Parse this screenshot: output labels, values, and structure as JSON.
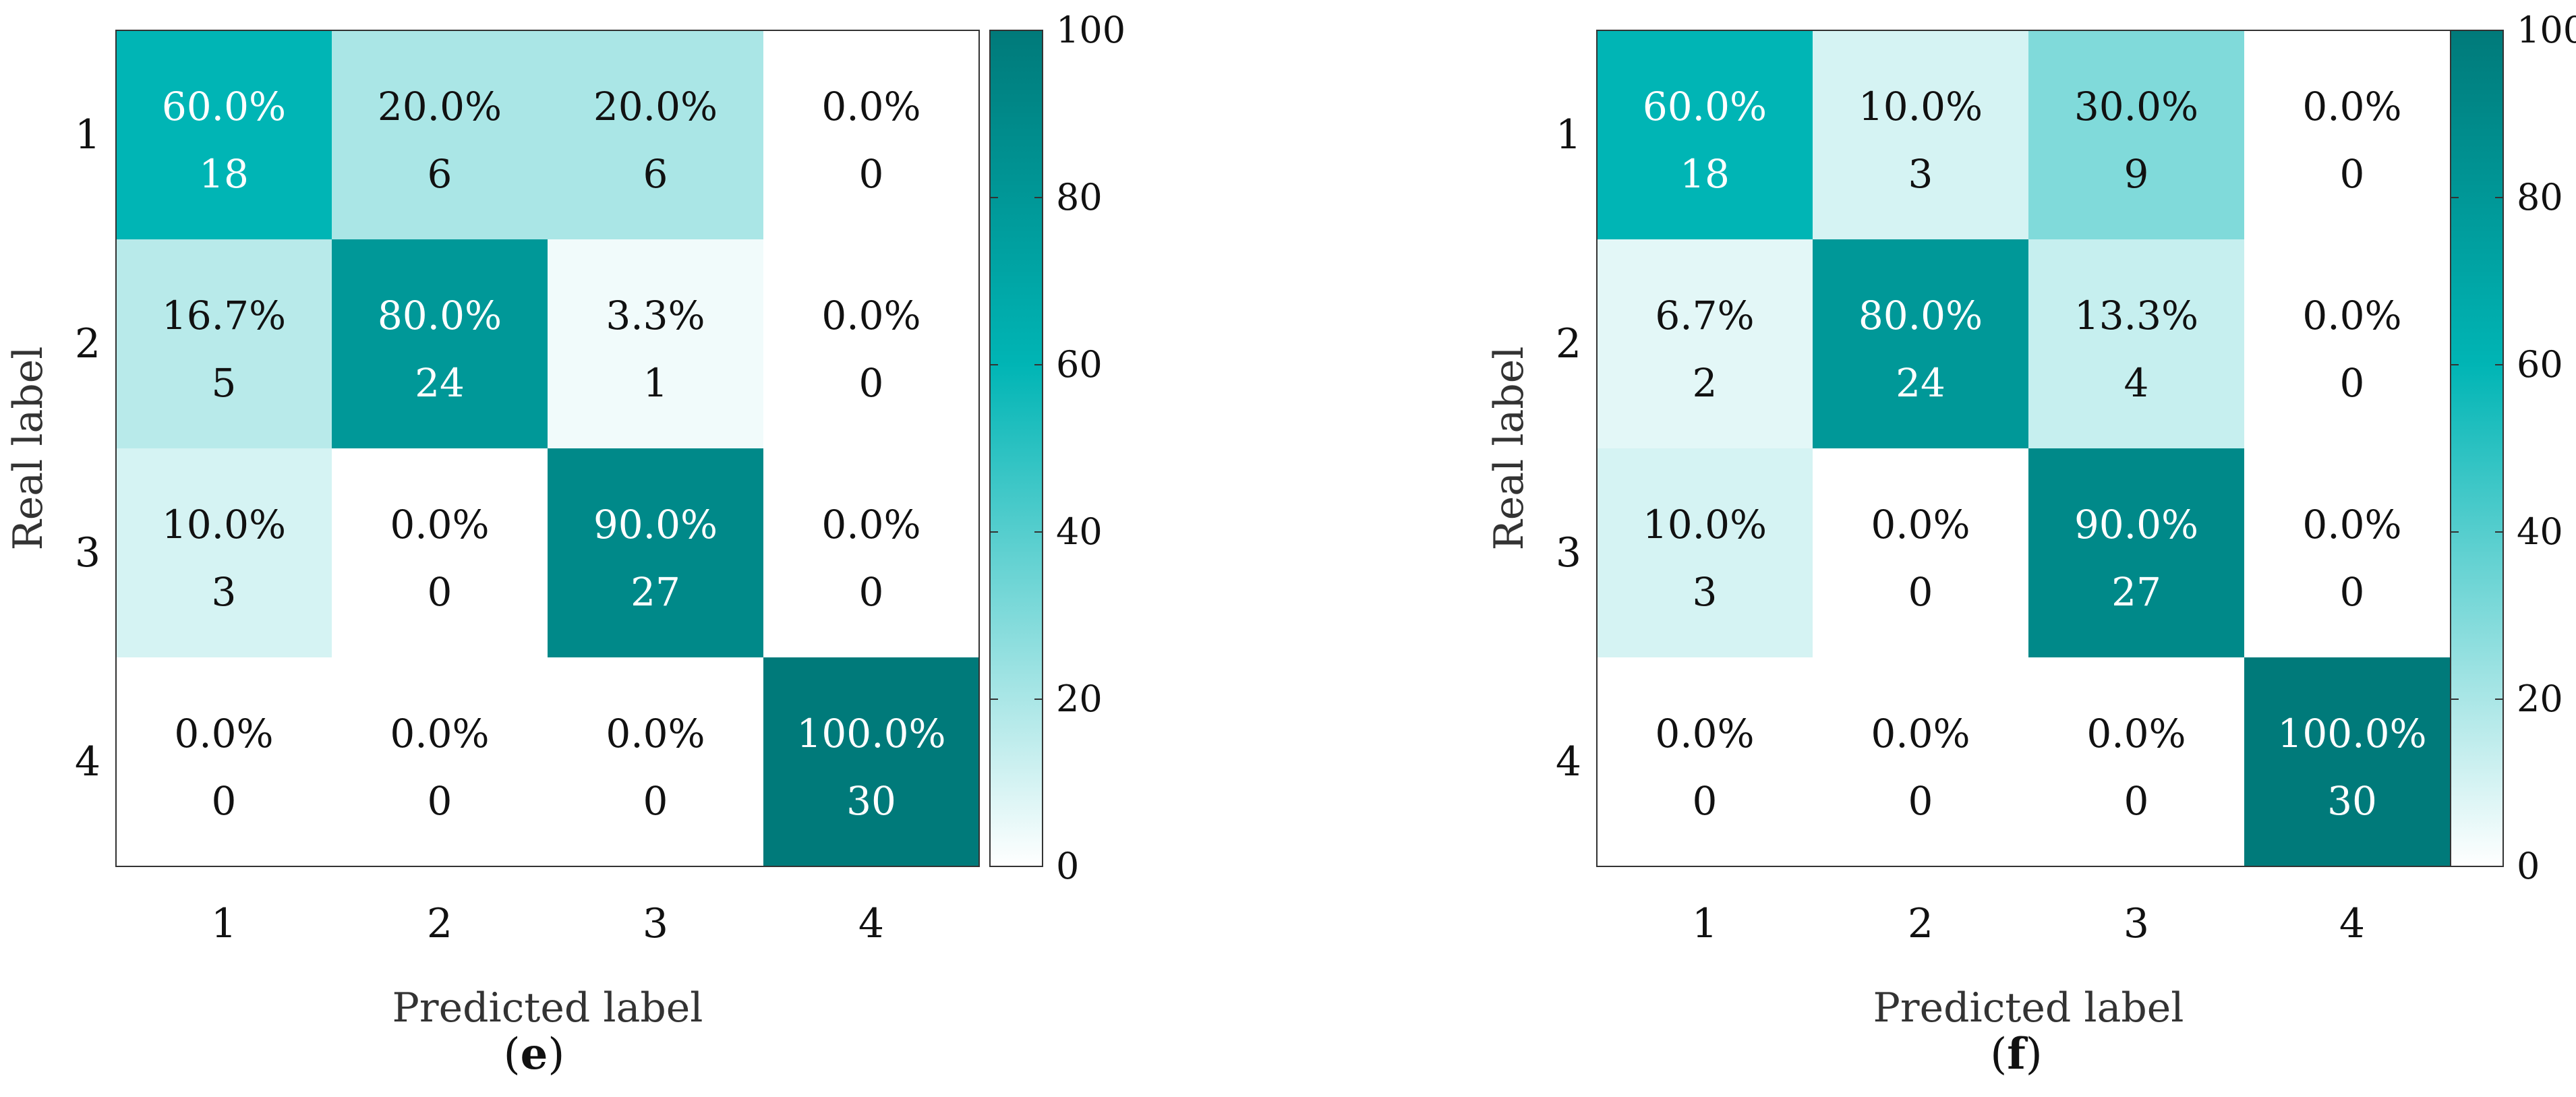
{
  "chart_data": [
    {
      "type": "heatmap",
      "panel_label": "e",
      "xlabel": "Predicted label",
      "ylabel": "Real label",
      "x_categories": [
        "1",
        "2",
        "3",
        "4"
      ],
      "y_categories": [
        "1",
        "2",
        "3",
        "4"
      ],
      "percent": [
        [
          "60.0%",
          "20.0%",
          "20.0%",
          "0.0%"
        ],
        [
          "16.7%",
          "80.0%",
          "3.3%",
          "0.0%"
        ],
        [
          "10.0%",
          "0.0%",
          "90.0%",
          "0.0%"
        ],
        [
          "0.0%",
          "0.0%",
          "0.0%",
          "100.0%"
        ]
      ],
      "counts": [
        [
          18,
          6,
          6,
          0
        ],
        [
          5,
          24,
          1,
          0
        ],
        [
          3,
          0,
          27,
          0
        ],
        [
          0,
          0,
          0,
          30
        ]
      ],
      "colorbar": {
        "min": 0,
        "max": 100,
        "ticks": [
          "0",
          "20",
          "40",
          "60",
          "80",
          "100"
        ]
      }
    },
    {
      "type": "heatmap",
      "panel_label": "f",
      "xlabel": "Predicted label",
      "ylabel": "Real label",
      "x_categories": [
        "1",
        "2",
        "3",
        "4"
      ],
      "y_categories": [
        "1",
        "2",
        "3",
        "4"
      ],
      "percent": [
        [
          "60.0%",
          "10.0%",
          "30.0%",
          "0.0%"
        ],
        [
          "6.7%",
          "80.0%",
          "13.3%",
          "0.0%"
        ],
        [
          "10.0%",
          "0.0%",
          "90.0%",
          "0.0%"
        ],
        [
          "0.0%",
          "0.0%",
          "0.0%",
          "100.0%"
        ]
      ],
      "counts": [
        [
          18,
          3,
          9,
          0
        ],
        [
          2,
          24,
          4,
          0
        ],
        [
          3,
          0,
          27,
          0
        ],
        [
          0,
          0,
          0,
          30
        ]
      ],
      "colorbar": {
        "min": 0,
        "max": 100,
        "ticks": [
          "0",
          "20",
          "40",
          "60",
          "80",
          "100"
        ]
      }
    }
  ],
  "colors": {
    "low": "#ffffff",
    "mid": "#00b5b5",
    "high": "#007a7a",
    "text_dark": "#111111",
    "text_light": "#ffffff"
  }
}
